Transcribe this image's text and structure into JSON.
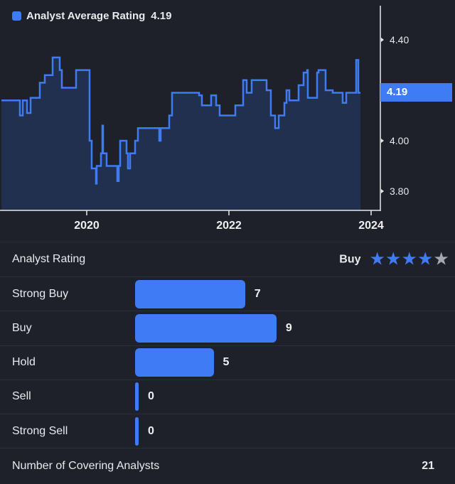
{
  "chart_data": {
    "type": "line",
    "step": true,
    "series": [
      {
        "name": "Analyst Average Rating",
        "points": [
          [
            2018.8,
            4.16
          ],
          [
            2019.06,
            4.1
          ],
          [
            2019.1,
            4.16
          ],
          [
            2019.16,
            4.11
          ],
          [
            2019.21,
            4.17
          ],
          [
            2019.34,
            4.23
          ],
          [
            2019.41,
            4.26
          ],
          [
            2019.52,
            4.33
          ],
          [
            2019.62,
            4.28
          ],
          [
            2019.65,
            4.21
          ],
          [
            2019.85,
            4.28
          ],
          [
            2020.04,
            4.0
          ],
          [
            2020.07,
            3.89
          ],
          [
            2020.13,
            3.83
          ],
          [
            2020.14,
            3.9
          ],
          [
            2020.2,
            3.95
          ],
          [
            2020.22,
            4.06
          ],
          [
            2020.23,
            3.95
          ],
          [
            2020.28,
            3.9
          ],
          [
            2020.43,
            3.84
          ],
          [
            2020.45,
            3.9
          ],
          [
            2020.47,
            4.0
          ],
          [
            2020.56,
            3.95
          ],
          [
            2020.58,
            3.89
          ],
          [
            2020.61,
            3.95
          ],
          [
            2020.68,
            4.0
          ],
          [
            2020.72,
            4.05
          ],
          [
            2021.02,
            4.0
          ],
          [
            2021.04,
            4.05
          ],
          [
            2021.16,
            4.1
          ],
          [
            2021.2,
            4.19
          ],
          [
            2021.58,
            4.18
          ],
          [
            2021.62,
            4.14
          ],
          [
            2021.75,
            4.18
          ],
          [
            2021.82,
            4.14
          ],
          [
            2021.87,
            4.1
          ],
          [
            2022.09,
            4.14
          ],
          [
            2022.2,
            4.24
          ],
          [
            2022.25,
            4.19
          ],
          [
            2022.32,
            4.24
          ],
          [
            2022.53,
            4.2
          ],
          [
            2022.59,
            4.1
          ],
          [
            2022.65,
            4.05
          ],
          [
            2022.7,
            4.1
          ],
          [
            2022.78,
            4.15
          ],
          [
            2022.81,
            4.2
          ],
          [
            2022.85,
            4.16
          ],
          [
            2022.98,
            4.22
          ],
          [
            2023.05,
            4.27
          ],
          [
            2023.1,
            4.28
          ],
          [
            2023.11,
            4.17
          ],
          [
            2023.24,
            4.27
          ],
          [
            2023.26,
            4.28
          ],
          [
            2023.36,
            4.2
          ],
          [
            2023.46,
            4.19
          ],
          [
            2023.6,
            4.15
          ],
          [
            2023.65,
            4.19
          ],
          [
            2023.79,
            4.32
          ],
          [
            2023.82,
            4.19
          ],
          [
            2023.85,
            4.19
          ]
        ]
      }
    ],
    "legend_label": "Analyst Average Rating",
    "current_value": "4.19",
    "x_ticks": [
      "2020",
      "2022",
      "2024"
    ],
    "y_ticks": [
      "4.40",
      "4.00",
      "3.80"
    ],
    "xlim": [
      2018.78,
      2024.13
    ],
    "ylim": [
      3.72,
      4.53
    ],
    "legend": "top-left",
    "grid": false,
    "colors": {
      "line": "#3f7bf5",
      "fill": "#22304f"
    }
  },
  "summary": {
    "rating_label": "Analyst Rating",
    "rating_value": "Buy",
    "stars": 4,
    "stars_max": 5,
    "distribution": [
      {
        "label": "Strong Buy",
        "count": 7
      },
      {
        "label": "Buy",
        "count": 9
      },
      {
        "label": "Hold",
        "count": 5
      },
      {
        "label": "Sell",
        "count": 0
      },
      {
        "label": "Strong Sell",
        "count": 0
      }
    ],
    "covering_label": "Number of Covering Analysts",
    "covering_count": "21"
  }
}
